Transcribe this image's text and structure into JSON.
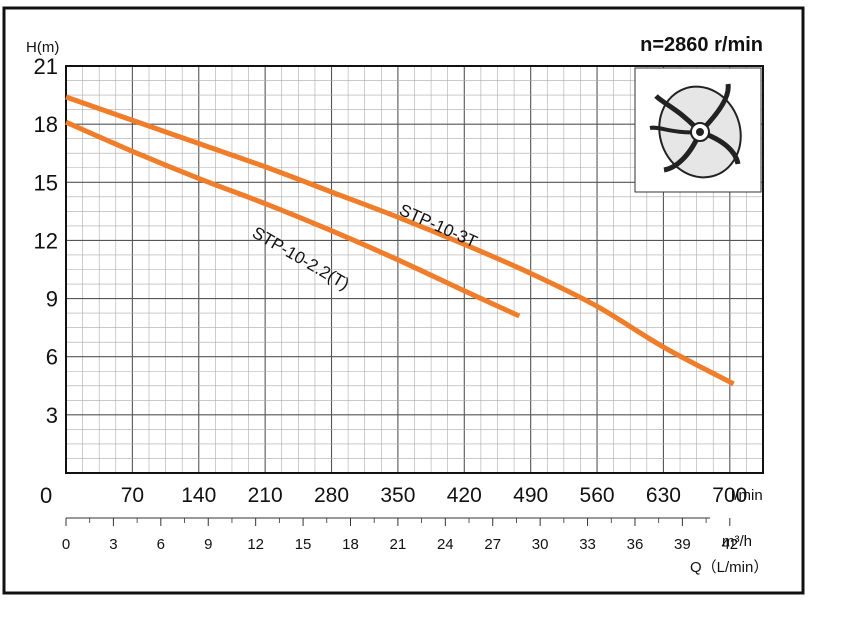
{
  "chart_data": {
    "type": "line",
    "title": "n=2860 r/min",
    "ylabel": "H(m)",
    "xlabel": "Q（L/min）",
    "x_unit": "l/min",
    "x2_unit": "m³/h",
    "ylim": [
      0,
      21
    ],
    "xlim": [
      0,
      735
    ],
    "y_ticks": [
      "3",
      "6",
      "9",
      "12",
      "15",
      "18",
      "21"
    ],
    "x_ticks": [
      "0",
      "70",
      "140",
      "210",
      "280",
      "350",
      "420",
      "490",
      "560",
      "630",
      "700"
    ],
    "x2_ticks": [
      "0",
      "3",
      "6",
      "9",
      "12",
      "15",
      "18",
      "21",
      "24",
      "27",
      "30",
      "33",
      "36",
      "39",
      "42"
    ],
    "grid": true,
    "series": [
      {
        "name": "STP-10-3T",
        "color": "#f07d2a",
        "x": [
          0,
          70,
          140,
          210,
          280,
          350,
          420,
          490,
          560,
          630,
          704
        ],
        "y": [
          19.4,
          18.2,
          17.0,
          15.8,
          14.5,
          13.2,
          11.8,
          10.3,
          8.6,
          6.5,
          4.6
        ]
      },
      {
        "name": "STP-10-2.2(T)",
        "color": "#f07d2a",
        "x": [
          0,
          70,
          140,
          210,
          280,
          350,
          420,
          478
        ],
        "y": [
          18.1,
          16.6,
          15.2,
          13.9,
          12.5,
          11.0,
          9.4,
          8.1
        ]
      }
    ],
    "inset_icon": "impeller-icon"
  }
}
